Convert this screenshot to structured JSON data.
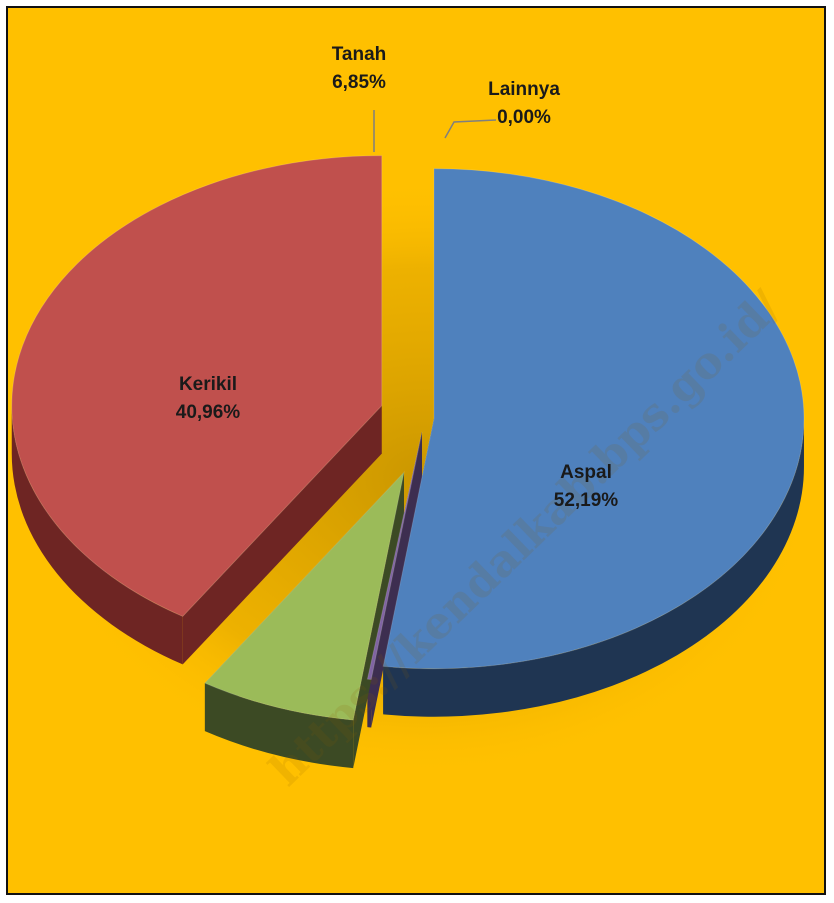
{
  "chart_data": {
    "type": "pie",
    "style": "3d-exploded",
    "title": "",
    "legend": "none",
    "slices": [
      {
        "label": "Aspal",
        "value": 52.19,
        "value_text": "52,19%",
        "color": "#4F81BD",
        "side_color": "#1F3552"
      },
      {
        "label": "Lainnya",
        "value": 0.0,
        "value_text": "0,00%",
        "color": "#8064A2",
        "side_color": "#3D2E50"
      },
      {
        "label": "Tanah",
        "value": 6.85,
        "value_text": "6,85%",
        "color": "#9BBB59",
        "side_color": "#3C4A24"
      },
      {
        "label": "Kerikil",
        "value": 40.96,
        "value_text": "40,96%",
        "color": "#C0504D",
        "side_color": "#6E2523"
      }
    ]
  },
  "watermark": "https://kendalkab.bps.go.id/",
  "colors": {
    "background": "#FFC000",
    "border": "#111111",
    "label_text": "#1a1a1a"
  }
}
